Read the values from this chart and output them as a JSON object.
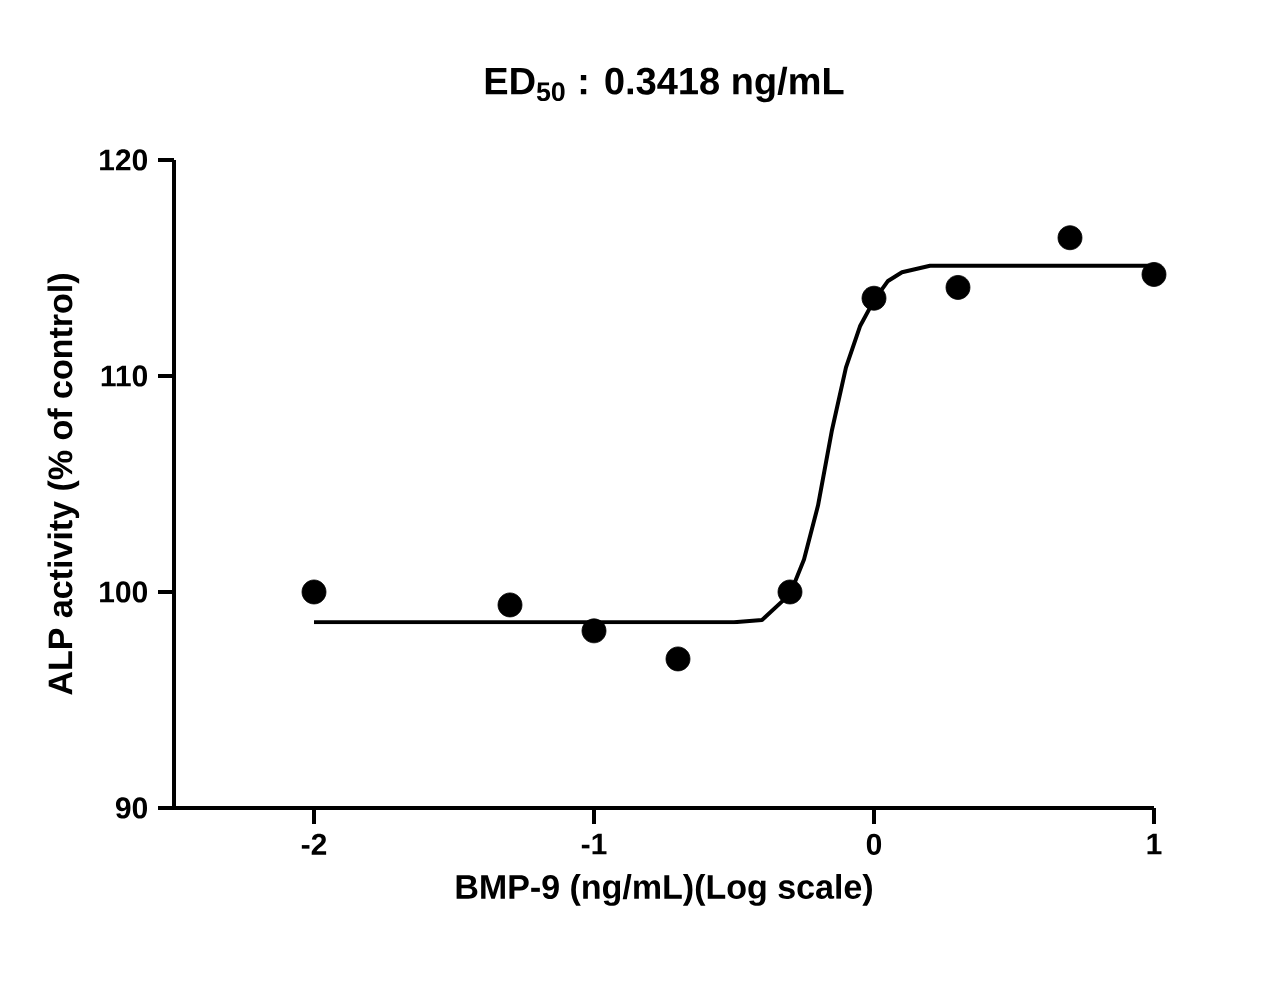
{
  "chart_data": {
    "type": "scatter",
    "title": "ED$_{50}$ : 0.3418 ng/mL",
    "xlabel": "BMP-9 (ng/mL)(Log scale)",
    "ylabel": "ALP activity (% of control)",
    "xlim": [
      -2.5,
      1
    ],
    "ylim": [
      90,
      120
    ],
    "xticks": [
      -2,
      -1,
      0,
      1
    ],
    "yticks": [
      90,
      100,
      110,
      120
    ],
    "grid": false,
    "series": [
      {
        "color": "#000000",
        "marker": "circle",
        "x": [
          -2,
          -1.3,
          -1,
          -0.7,
          -0.3,
          0,
          0.3,
          0.7,
          1
        ],
        "values": [
          100.0,
          99.4,
          98.2,
          96.9,
          100.0,
          113.6,
          114.1,
          116.4,
          114.7
        ]
      },
      {
        "type": "line",
        "color": "#000000",
        "marker": "none",
        "line_style": "solid",
        "x": [
          -2,
          -0.5,
          -0.4,
          -0.3,
          -0.25,
          -0.2,
          -0.15,
          -0.1,
          -0.05,
          0,
          0.05,
          0.1,
          0.2,
          1
        ],
        "values": [
          98.6,
          98.6,
          98.7,
          99.9,
          101.5,
          104.0,
          107.5,
          110.4,
          112.3,
          113.5,
          114.4,
          114.8,
          115.1,
          115.1
        ]
      }
    ]
  }
}
